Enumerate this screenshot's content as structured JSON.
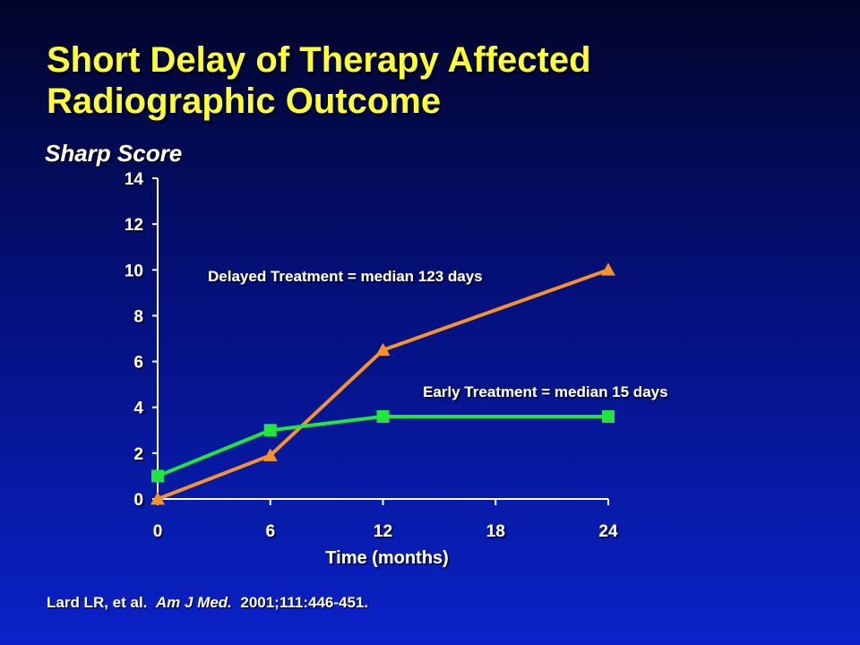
{
  "slide": {
    "title_line1": "Short Delay of Therapy Affected",
    "title_line2": "Radiographic Outcome",
    "citation_pre": "Lard LR, et al.",
    "citation_journal": "Am J Med.",
    "citation_post": "2001;111:446-451.",
    "colors": {
      "title": "#ffff33",
      "text": "#ffffff",
      "delayed": "#f5922a",
      "early": "#22e63c"
    }
  },
  "chart_data": {
    "type": "line",
    "ylabel": "Sharp Score",
    "xlabel": "Time (months)",
    "xlim": [
      0,
      24
    ],
    "ylim": [
      0,
      14
    ],
    "xticks": [
      "0",
      "6",
      "12",
      "18",
      "24"
    ],
    "yticks": [
      "0",
      "2",
      "4",
      "6",
      "8",
      "10",
      "12",
      "14"
    ],
    "grid": false,
    "series": [
      {
        "name": "Delayed Treatment = median 123 days",
        "marker": "triangle",
        "color": "#f5922a",
        "x": [
          0,
          6,
          12,
          24
        ],
        "y": [
          0,
          1.9,
          6.5,
          10
        ]
      },
      {
        "name": "Early Treatment = median 15 days",
        "marker": "square",
        "color": "#22e63c",
        "x": [
          0,
          6,
          12,
          24
        ],
        "y": [
          1,
          3,
          3.6,
          3.6
        ]
      }
    ]
  }
}
